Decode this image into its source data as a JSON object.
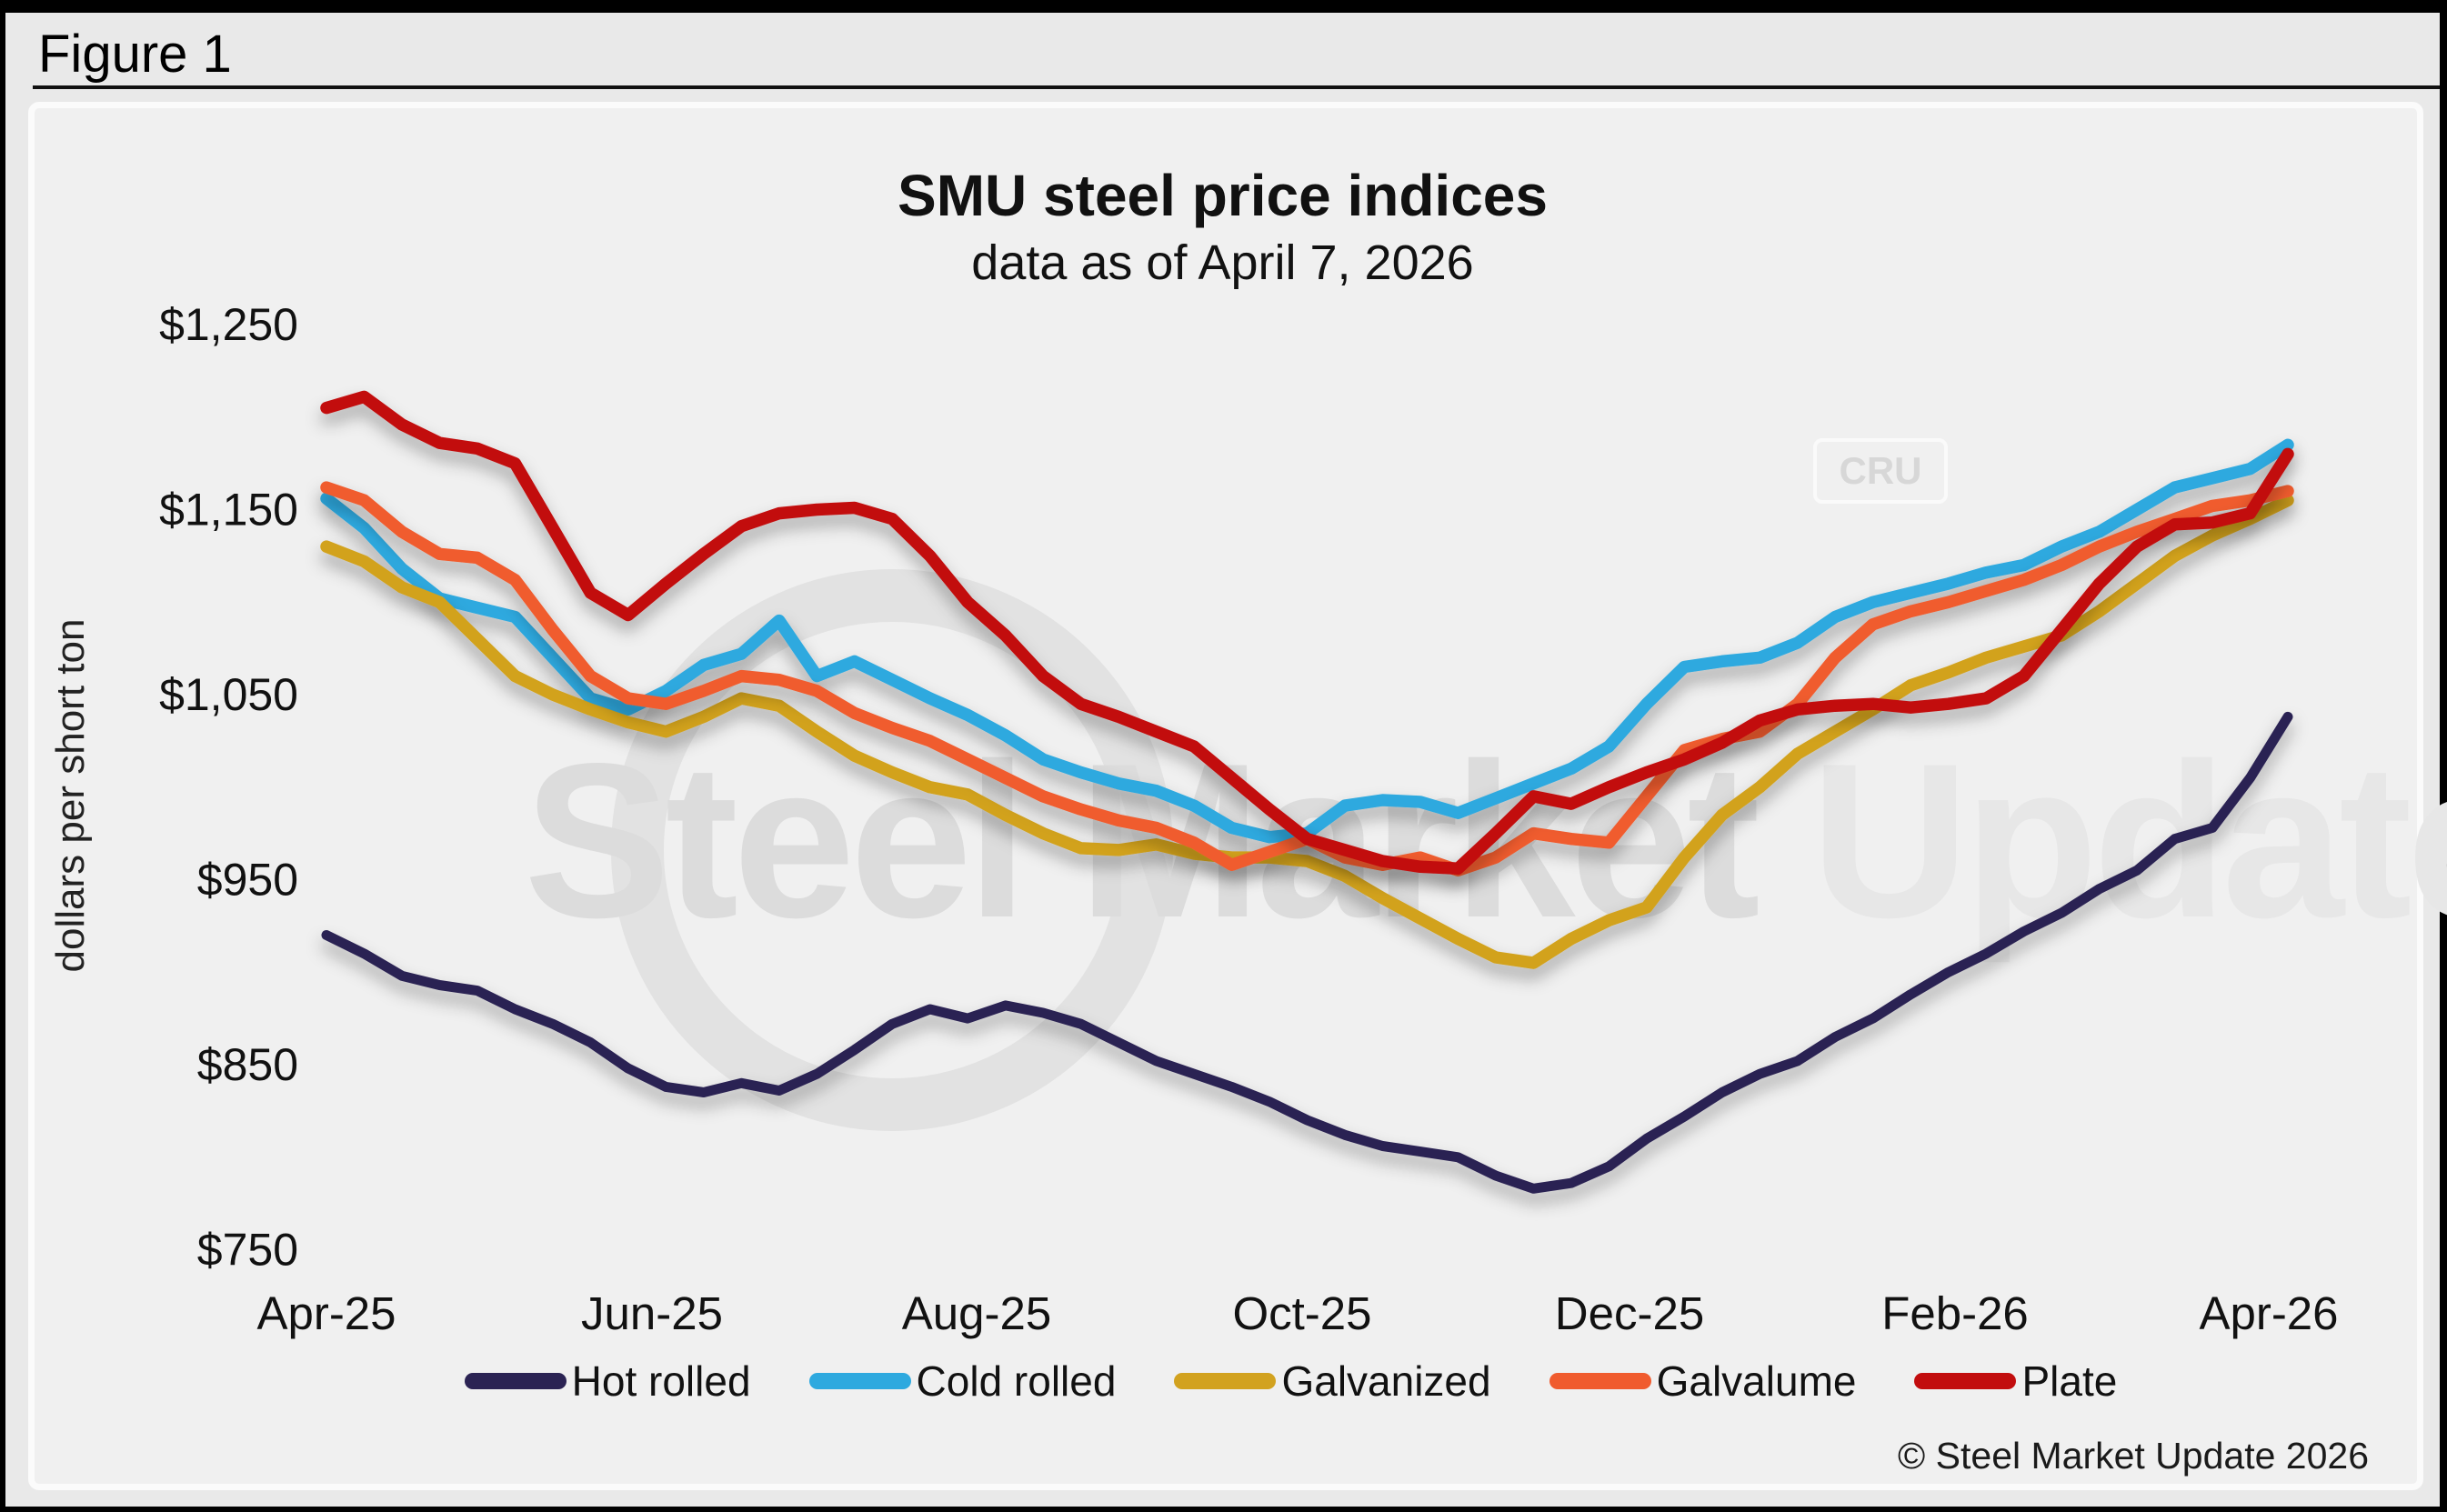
{
  "figure": {
    "label": "Figure 1"
  },
  "chart": {
    "title": "SMU steel price indices",
    "subtitle": "data as of April 7, 2026",
    "y_axis_title": "dollars per short ton",
    "copyright": "© Steel Market Update 2026",
    "watermark": {
      "text_primary": "Steel Market ",
      "text_secondary": "Update",
      "badge": "CRU"
    }
  },
  "chart_data": {
    "type": "line",
    "title": "SMU steel price indices",
    "subtitle": "data as of April 7, 2026",
    "xlabel": "",
    "ylabel": "dollars per short ton",
    "ylim": [
      750,
      1250
    ],
    "grid": false,
    "legend_position": "bottom",
    "x_frequency": "weekly",
    "x_range": [
      "Apr-25",
      "Apr-26"
    ],
    "x_tick_labels": [
      "Apr-25",
      "Jun-25",
      "Aug-25",
      "Oct-25",
      "Dec-25",
      "Feb-26",
      "Apr-26"
    ],
    "y_ticks": [
      {
        "value": 750,
        "label": "$750"
      },
      {
        "value": 850,
        "label": "$850"
      },
      {
        "value": 950,
        "label": "$950"
      },
      {
        "value": 1050,
        "label": "$1,050"
      },
      {
        "value": 1150,
        "label": "$1,150"
      },
      {
        "value": 1250,
        "label": "$1,250"
      }
    ],
    "series": [
      {
        "name": "Hot rolled",
        "color": "#2b2353",
        "values": [
          920,
          910,
          898,
          893,
          890,
          880,
          872,
          862,
          848,
          838,
          835,
          840,
          836,
          845,
          858,
          872,
          880,
          875,
          882,
          878,
          872,
          862,
          852,
          845,
          838,
          830,
          820,
          812,
          806,
          803,
          800,
          790,
          783,
          786,
          795,
          810,
          822,
          835,
          845,
          852,
          865,
          875,
          888,
          900,
          910,
          922,
          932,
          945,
          955,
          972,
          978,
          1005,
          1038
        ]
      },
      {
        "name": "Cold rolled",
        "color": "#2ea9df",
        "values": [
          1156,
          1140,
          1118,
          1102,
          1097,
          1092,
          1070,
          1048,
          1042,
          1052,
          1066,
          1072,
          1090,
          1060,
          1068,
          1058,
          1048,
          1039,
          1028,
          1015,
          1008,
          1002,
          998,
          990,
          978,
          973,
          975,
          990,
          993,
          992,
          986,
          994,
          1002,
          1010,
          1022,
          1045,
          1065,
          1068,
          1070,
          1078,
          1092,
          1100,
          1105,
          1110,
          1116,
          1120,
          1130,
          1138,
          1150,
          1162,
          1167,
          1172,
          1185
        ]
      },
      {
        "name": "Galvanized",
        "color": "#d2a21f",
        "values": [
          1130,
          1122,
          1108,
          1100,
          1080,
          1060,
          1050,
          1042,
          1035,
          1030,
          1038,
          1048,
          1044,
          1030,
          1017,
          1008,
          1000,
          996,
          985,
          975,
          967,
          966,
          969,
          964,
          962,
          962,
          960,
          952,
          940,
          929,
          918,
          908,
          905,
          918,
          928,
          935,
          962,
          985,
          1000,
          1018,
          1030,
          1042,
          1055,
          1062,
          1070,
          1076,
          1082,
          1095,
          1110,
          1125,
          1136,
          1145,
          1155
        ]
      },
      {
        "name": "Galvalume",
        "color": "#f05b2e",
        "values": [
          1162,
          1155,
          1138,
          1126,
          1124,
          1112,
          1085,
          1060,
          1048,
          1045,
          1052,
          1060,
          1058,
          1052,
          1040,
          1032,
          1025,
          1015,
          1005,
          995,
          988,
          982,
          978,
          970,
          958,
          965,
          972,
          962,
          958,
          962,
          955,
          962,
          975,
          972,
          970,
          995,
          1020,
          1026,
          1030,
          1045,
          1070,
          1088,
          1095,
          1100,
          1106,
          1112,
          1120,
          1130,
          1138,
          1145,
          1152,
          1155,
          1160
        ]
      },
      {
        "name": "Plate",
        "color": "#c20d0e",
        "values": [
          1205,
          1211,
          1196,
          1186,
          1183,
          1175,
          1140,
          1105,
          1093,
          1110,
          1126,
          1141,
          1148,
          1150,
          1151,
          1145,
          1125,
          1100,
          1082,
          1060,
          1045,
          1038,
          1030,
          1022,
          1005,
          988,
          972,
          966,
          960,
          957,
          956,
          975,
          995,
          991,
          1000,
          1008,
          1015,
          1024,
          1036,
          1042,
          1044,
          1045,
          1043,
          1045,
          1048,
          1060,
          1085,
          1110,
          1130,
          1142,
          1143,
          1148,
          1180
        ]
      }
    ]
  }
}
